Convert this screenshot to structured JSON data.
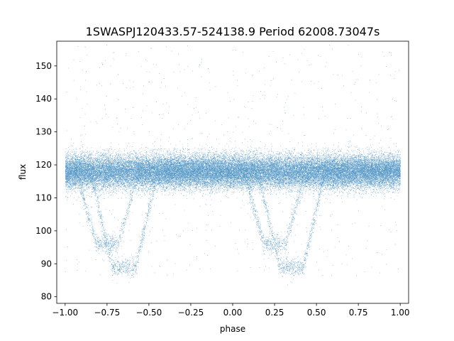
{
  "chart_data": {
    "type": "scatter",
    "title": "1SWASPJ120433.57-524138.9 Period 62008.73047s",
    "xlabel": "phase",
    "ylabel": "flux",
    "xlim": [
      -1.05,
      1.05
    ],
    "ylim": [
      78,
      157.5
    ],
    "x_ticks": [
      -1.0,
      -0.75,
      -0.5,
      -0.25,
      0.0,
      0.25,
      0.5,
      0.75,
      1.0
    ],
    "x_tick_labels": [
      "−1.00",
      "−0.75",
      "−0.50",
      "−0.25",
      "0.00",
      "0.25",
      "0.50",
      "0.75",
      "1.00"
    ],
    "y_ticks": [
      80,
      90,
      100,
      110,
      120,
      130,
      140,
      150
    ],
    "y_tick_labels": [
      "80",
      "90",
      "100",
      "110",
      "120",
      "130",
      "140",
      "150"
    ],
    "grid": false,
    "marker_color": "#1f77b4",
    "phase_range": [
      -1.0,
      1.0
    ],
    "baseline_flux": 118,
    "baseline_scatter": 2.5,
    "eclipses": [
      {
        "center_phase": -0.65,
        "min_flux": 89,
        "ingress_phase": -0.85,
        "egress_phase": -0.45
      },
      {
        "center_phase": -0.75,
        "min_flux": 96,
        "ingress_phase": -0.92,
        "egress_phase": -0.55
      },
      {
        "center_phase": 0.35,
        "min_flux": 89,
        "ingress_phase": 0.15,
        "egress_phase": 0.55
      },
      {
        "center_phase": 0.25,
        "min_flux": 96,
        "ingress_phase": 0.08,
        "egress_phase": 0.45
      }
    ],
    "series": [
      {
        "point_count": 45000
      }
    ]
  }
}
